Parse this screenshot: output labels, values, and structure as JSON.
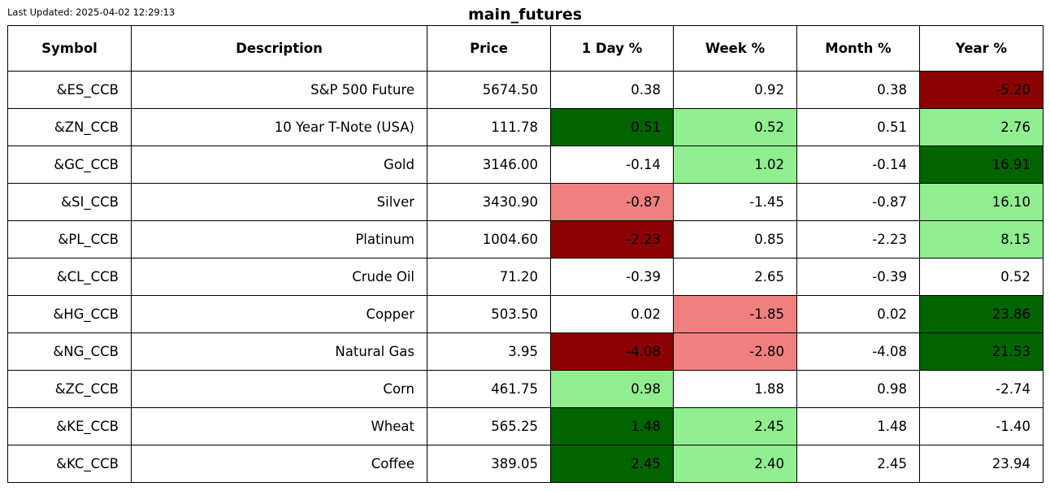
{
  "last_updated": "Last Updated: 2025-04-02 12:29:13",
  "title": "main_futures",
  "colors": {
    "strong_positive": "#006400",
    "positive": "#90EE90",
    "negative": "#F08080",
    "strong_negative": "#8B0000",
    "neutral": "#FFFFFF"
  },
  "chart_data": {
    "type": "table",
    "title": "main_futures",
    "columns": [
      "Symbol",
      "Description",
      "Price",
      "1 Day %",
      "Week %",
      "Month %",
      "Year %"
    ],
    "rows": [
      [
        "&ES_CCB",
        "S&P 500 Future",
        "5674.50",
        "0.38",
        "0.92",
        "0.38",
        "-5.20"
      ],
      [
        "&ZN_CCB",
        "10 Year T-Note (USA)",
        "111.78",
        "0.51",
        "0.52",
        "0.51",
        "2.76"
      ],
      [
        "&GC_CCB",
        "Gold",
        "3146.00",
        "-0.14",
        "1.02",
        "-0.14",
        "16.91"
      ],
      [
        "&SI_CCB",
        "Silver",
        "3430.90",
        "-0.87",
        "-1.45",
        "-0.87",
        "16.10"
      ],
      [
        "&PL_CCB",
        "Platinum",
        "1004.60",
        "-2.23",
        "0.85",
        "-2.23",
        "8.15"
      ],
      [
        "&CL_CCB",
        "Crude Oil",
        "71.20",
        "-0.39",
        "2.65",
        "-0.39",
        "0.52"
      ],
      [
        "&HG_CCB",
        "Copper",
        "503.50",
        "0.02",
        "-1.85",
        "0.02",
        "23.86"
      ],
      [
        "&NG_CCB",
        "Natural Gas",
        "3.95",
        "-4.08",
        "-2.80",
        "-4.08",
        "21.53"
      ],
      [
        "&ZC_CCB",
        "Corn",
        "461.75",
        "0.98",
        "1.88",
        "0.98",
        "-2.74"
      ],
      [
        "&KE_CCB",
        "Wheat",
        "565.25",
        "1.48",
        "2.45",
        "1.48",
        "-1.40"
      ],
      [
        "&KC_CCB",
        "Coffee",
        "389.05",
        "2.45",
        "2.40",
        "2.45",
        "23.94"
      ]
    ],
    "cell_highlights": [
      [
        null,
        null,
        null,
        null,
        null,
        null,
        "strong_negative"
      ],
      [
        null,
        null,
        null,
        "strong_positive",
        "positive",
        null,
        "positive"
      ],
      [
        null,
        null,
        null,
        null,
        "positive",
        null,
        "strong_positive"
      ],
      [
        null,
        null,
        null,
        "negative",
        null,
        null,
        "positive"
      ],
      [
        null,
        null,
        null,
        "strong_negative",
        null,
        null,
        "positive"
      ],
      [
        null,
        null,
        null,
        null,
        null,
        null,
        null
      ],
      [
        null,
        null,
        null,
        null,
        "negative",
        null,
        "strong_positive"
      ],
      [
        null,
        null,
        null,
        "strong_negative",
        "negative",
        null,
        "strong_positive"
      ],
      [
        null,
        null,
        null,
        "positive",
        null,
        null,
        null
      ],
      [
        null,
        null,
        null,
        "strong_positive",
        "positive",
        null,
        null
      ],
      [
        null,
        null,
        null,
        "strong_positive",
        "positive",
        null,
        null
      ]
    ]
  }
}
